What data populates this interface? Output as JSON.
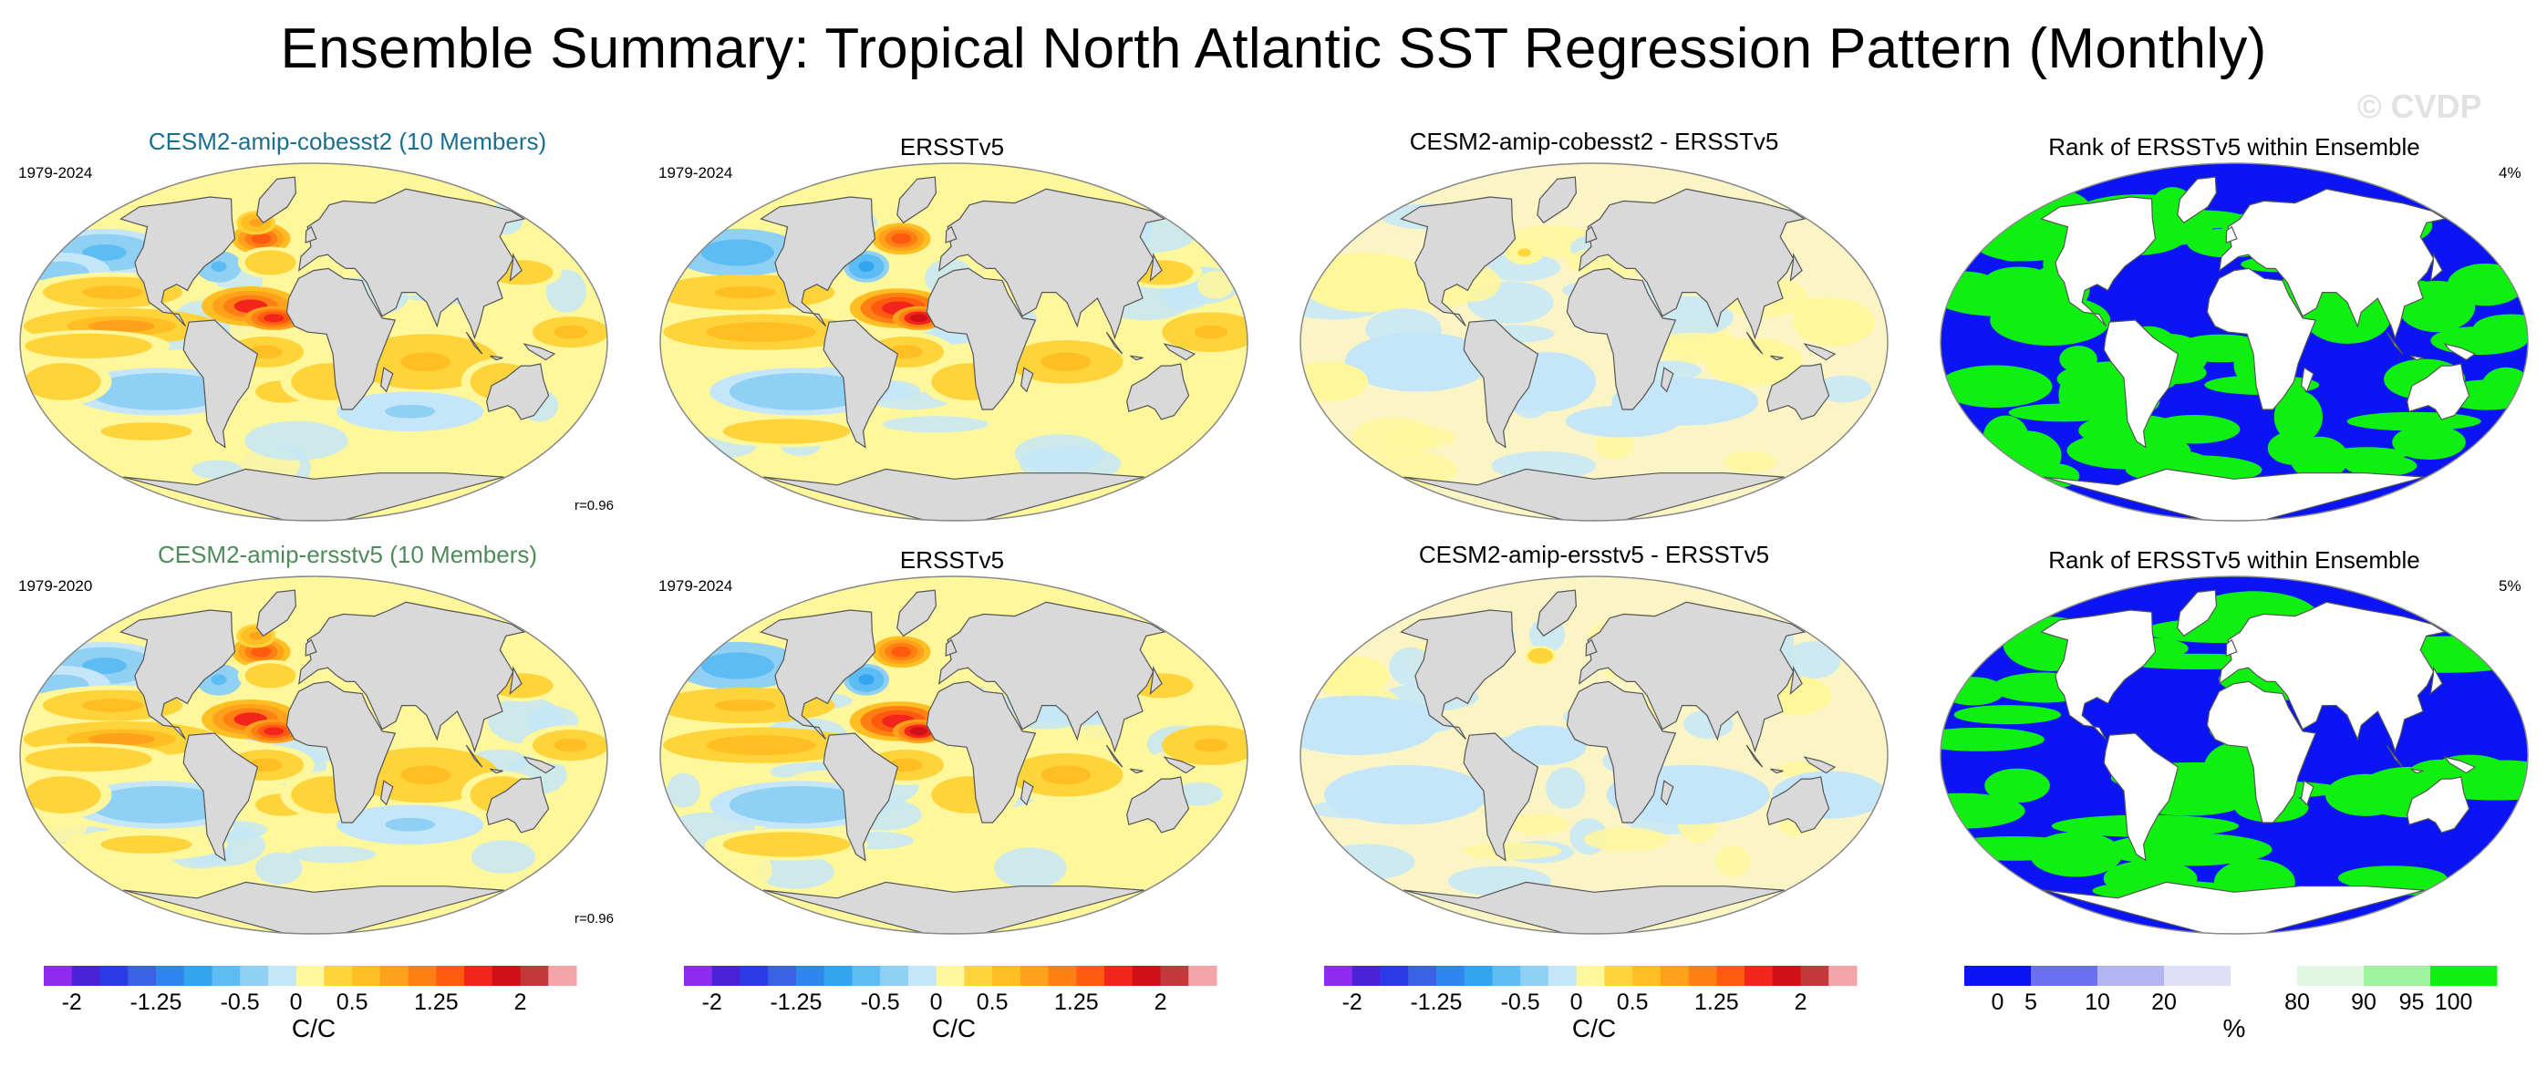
{
  "title": "Ensemble Summary: Tropical North Atlantic SST Regression Pattern (Monthly)",
  "watermark": "© CVDP",
  "rows": [
    {
      "model_title": "CESM2-amip-cobesst2 (10 Members)",
      "model_title_color": "#1a6f8f",
      "model_period": "1979-2024",
      "pattern_corr": "r=0.96",
      "obs_title": "ERSSTv5",
      "obs_period": "1979-2024",
      "diff_title": "CESM2-amip-cobesst2 - ERSSTv5",
      "rank_title": "Rank of ERSSTv5 within Ensemble",
      "rank_pct": "4%"
    },
    {
      "model_title": "CESM2-amip-ersstv5 (10 Members)",
      "model_title_color": "#4f8a5b",
      "model_period": "1979-2020",
      "pattern_corr": "r=0.96",
      "obs_title": "ERSSTv5",
      "obs_period": "1979-2024",
      "diff_title": "CESM2-amip-ersstv5 - ERSSTv5",
      "rank_title": "Rank of ERSSTv5 within Ensemble",
      "rank_pct": "5%"
    }
  ],
  "chart_data": {
    "type": "heatmap",
    "projection": "Robinson (global)",
    "regression_colorbar": {
      "unit": "C/C",
      "levels": [
        -2,
        -1.75,
        -1.5,
        -1.25,
        -1,
        -0.75,
        -0.5,
        -0.25,
        0,
        0.25,
        0.5,
        0.75,
        1,
        1.25,
        1.5,
        1.75,
        2
      ],
      "tick_labels": [
        "-2",
        "-1.25",
        "-0.5",
        "0",
        "0.5",
        "1.25",
        "2"
      ],
      "tick_values": [
        -2,
        -1.25,
        -0.5,
        0,
        0.5,
        1.25,
        2
      ],
      "colors": [
        "#8f2bef",
        "#4b23d6",
        "#2b3be8",
        "#3b62e6",
        "#2f86ee",
        "#33a4f0",
        "#5dbcf3",
        "#8fd0f4",
        "#c4e6f8",
        "#fff79c",
        "#ffd43b",
        "#ffbe22",
        "#ffa11b",
        "#ff7f12",
        "#ff5a0d",
        "#f2241b",
        "#d10f16",
        "#c5383a",
        "#f5a5a8"
      ]
    },
    "rank_colorbar": {
      "unit": "%",
      "tick_labels": [
        "0",
        "5",
        "10",
        "20",
        "80",
        "90",
        "95",
        "100"
      ],
      "bins": [
        {
          "from": 0,
          "to": 5,
          "color": "#0a14f5"
        },
        {
          "from": 5,
          "to": 10,
          "color": "#6b6ff2"
        },
        {
          "from": 10,
          "to": 20,
          "color": "#b3b5f2"
        },
        {
          "from": 20,
          "to": 50,
          "color": "#dfe0f7"
        },
        {
          "from": 50,
          "to": 80,
          "color": "#ffffff"
        },
        {
          "from": 80,
          "to": 90,
          "color": "#e2f7e2"
        },
        {
          "from": 90,
          "to": 95,
          "color": "#9ef39e"
        },
        {
          "from": 95,
          "to": 100,
          "color": "#10f010"
        }
      ]
    },
    "panels": [
      {
        "row": 1,
        "col": 1,
        "field": "ensemble mean regression",
        "period": "1979-2024",
        "r": 0.96,
        "features": [
          {
            "name": "North Atlantic subpolar warm",
            "lon": -40,
            "lat": 50,
            "value": 1.5
          },
          {
            "name": "Tropical North Atlantic maximum",
            "lon": -35,
            "lat": 15,
            "value": 1.6
          },
          {
            "name": "Gulf Stream cold",
            "lon": -60,
            "lat": 35,
            "value": -0.5
          },
          {
            "name": "North Pacific cold",
            "lon": -160,
            "lat": 45,
            "value": -0.5
          },
          {
            "name": "Tropical Pacific warm tongue",
            "lon": -130,
            "lat": 5,
            "value": 0.6
          },
          {
            "name": "Indian Ocean warm",
            "lon": 75,
            "lat": -10,
            "value": 0.5
          },
          {
            "name": "Southeast Pacific cold",
            "lon": -110,
            "lat": -25,
            "value": -0.4
          }
        ]
      },
      {
        "row": 1,
        "col": 2,
        "field": "observed regression",
        "period": "1979-2024",
        "features": [
          {
            "name": "North Atlantic subpolar warm",
            "lon": -40,
            "lat": 50,
            "value": 1.5
          },
          {
            "name": "Tropical North Atlantic maximum",
            "lon": -35,
            "lat": 15,
            "value": 1.8
          },
          {
            "name": "North Pacific cold",
            "lon": -160,
            "lat": 45,
            "value": -0.6
          },
          {
            "name": "Tropical Pacific warm tongue",
            "lon": -130,
            "lat": 5,
            "value": 0.6
          }
        ]
      },
      {
        "row": 1,
        "col": 3,
        "field": "difference",
        "features": [
          {
            "name": "Mostly weak anomalies",
            "lon": 0,
            "lat": 0,
            "value": 0.1
          }
        ]
      },
      {
        "row": 1,
        "col": 4,
        "field": "rank",
        "rank_pct": 4
      },
      {
        "row": 2,
        "col": 1,
        "field": "ensemble mean regression",
        "period": "1979-2020",
        "r": 0.96
      },
      {
        "row": 2,
        "col": 2,
        "field": "observed regression",
        "period": "1979-2024"
      },
      {
        "row": 2,
        "col": 3,
        "field": "difference"
      },
      {
        "row": 2,
        "col": 4,
        "field": "rank",
        "rank_pct": 5
      }
    ]
  }
}
